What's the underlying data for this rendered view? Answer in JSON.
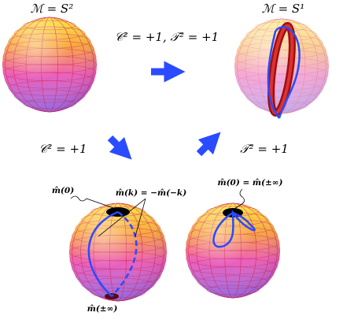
{
  "labels": {
    "manifold_left": "ℳ = S²",
    "manifold_right": "ℳ = S¹",
    "both_symmetries": "𝒞² = +1,  𝒯² = +1",
    "c_symmetry": "𝒞² = +1",
    "t_symmetry": "𝒯² = +1",
    "m_zero": "m̂(0)",
    "m_relation": "m̂(k) = −m̂(−k)",
    "m_zero_infinity": "m̂(0) = m̂(±∞)",
    "m_infinity": "m̂(±∞)"
  }
}
